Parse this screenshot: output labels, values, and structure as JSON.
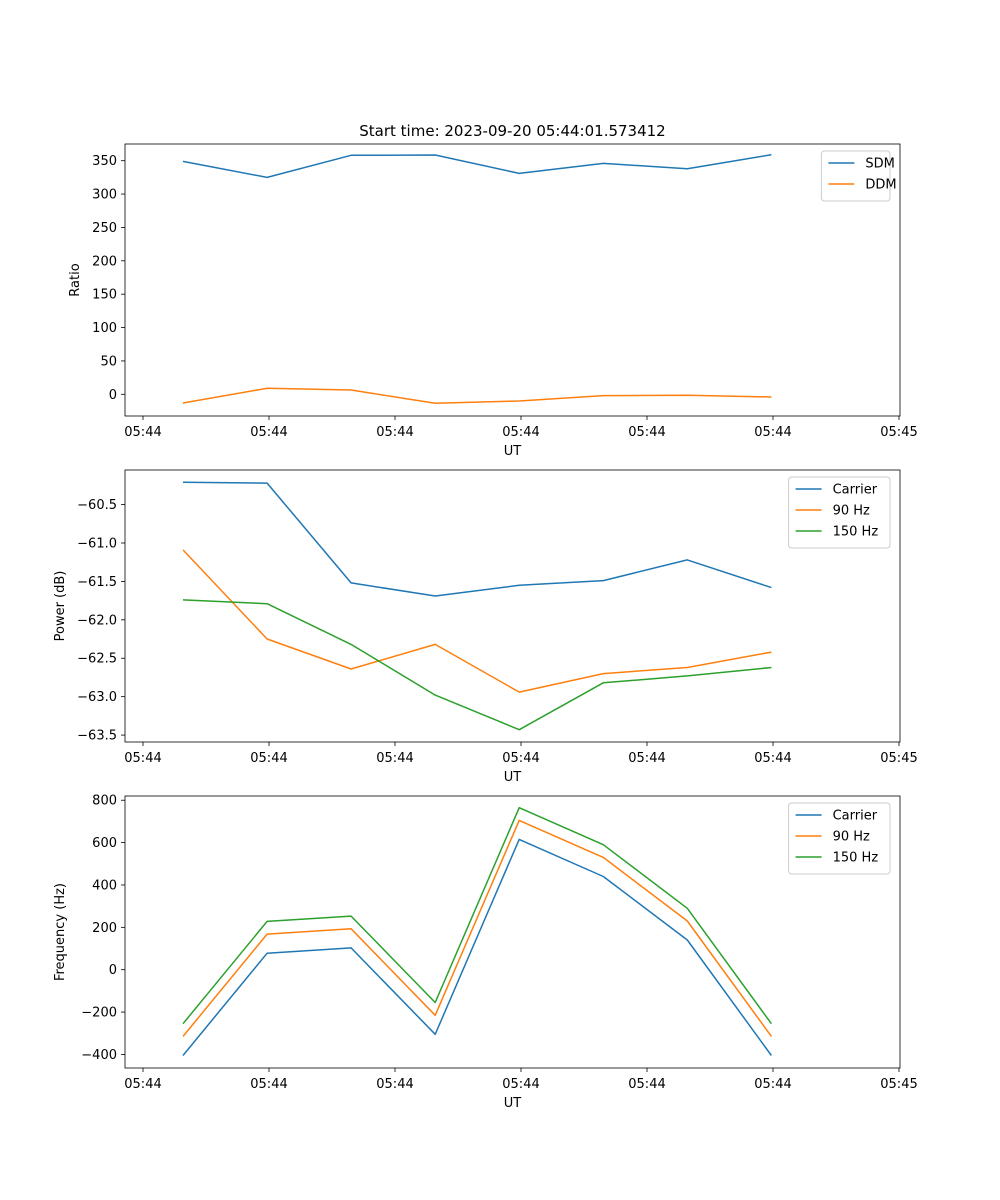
{
  "figure_title": "Start time: 2023-09-20 05:44:01.573412",
  "colors": {
    "blue": "#1f77b4",
    "orange": "#ff7f0e",
    "green": "#2ca02c"
  },
  "chart_data": [
    {
      "type": "line",
      "title": "Start time: 2023-09-20 05:44:01.573412",
      "xlabel": "UT",
      "ylabel": "Ratio",
      "x_ticks": [
        "05:44",
        "05:44",
        "05:44",
        "05:44",
        "05:44",
        "05:44",
        "05:45"
      ],
      "y_ticks": [
        0,
        50,
        100,
        150,
        200,
        250,
        300,
        350
      ],
      "ylim": [
        -32.5,
        375
      ],
      "x": [
        1,
        2,
        3,
        4,
        5,
        6,
        7,
        8
      ],
      "xlim": [
        0.31,
        9.53
      ],
      "legend_position": "upper-right",
      "series": [
        {
          "name": "SDM",
          "color": "#1f77b4",
          "values": [
            349,
            325,
            358,
            358.5,
            331,
            346,
            338,
            359
          ]
        },
        {
          "name": "DDM",
          "color": "#ff7f0e",
          "values": [
            -13,
            9,
            6.5,
            -13.5,
            -10,
            -2,
            -1.5,
            -4
          ]
        }
      ]
    },
    {
      "type": "line",
      "title": "",
      "xlabel": "UT",
      "ylabel": "Power (dB)",
      "x_ticks": [
        "05:44",
        "05:44",
        "05:44",
        "05:44",
        "05:44",
        "05:44",
        "05:45"
      ],
      "y_ticks": [
        -63.5,
        -63.0,
        -62.5,
        -62.0,
        -61.5,
        -61.0,
        -60.5
      ],
      "y_tick_labels": [
        "−63.5",
        "−63.0",
        "−62.5",
        "−62.0",
        "−61.5",
        "−61.0",
        "−60.5"
      ],
      "ylim": [
        -63.59,
        -60.05
      ],
      "x": [
        1,
        2,
        3,
        4,
        5,
        6,
        7,
        8
      ],
      "xlim": [
        0.31,
        9.53
      ],
      "legend_position": "upper-right",
      "series": [
        {
          "name": "Carrier",
          "color": "#1f77b4",
          "values": [
            -60.21,
            -60.22,
            -61.52,
            -61.69,
            -61.55,
            -61.49,
            -61.22,
            -61.58
          ]
        },
        {
          "name": "90 Hz",
          "color": "#ff7f0e",
          "values": [
            -61.09,
            -62.25,
            -62.64,
            -62.32,
            -62.94,
            -62.7,
            -62.62,
            -62.42
          ]
        },
        {
          "name": "150 Hz",
          "color": "#2ca02c",
          "values": [
            -61.74,
            -61.79,
            -62.32,
            -62.98,
            -63.43,
            -62.82,
            -62.73,
            -62.62
          ]
        }
      ]
    },
    {
      "type": "line",
      "title": "",
      "xlabel": "UT",
      "ylabel": "Frequency (Hz)",
      "x_ticks": [
        "05:44",
        "05:44",
        "05:44",
        "05:44",
        "05:44",
        "05:44",
        "05:45"
      ],
      "y_ticks": [
        -400,
        -200,
        0,
        200,
        400,
        600,
        800
      ],
      "y_tick_labels": [
        "−400",
        "−200",
        "0",
        "200",
        "400",
        "600",
        "800"
      ],
      "ylim": [
        -464,
        820
      ],
      "x": [
        1,
        2,
        3,
        4,
        5,
        6,
        7,
        8
      ],
      "xlim": [
        0.31,
        9.53
      ],
      "legend_position": "upper-right",
      "series": [
        {
          "name": "Carrier",
          "color": "#1f77b4",
          "values": [
            -405,
            78,
            103,
            -305,
            615,
            440,
            140,
            -405
          ]
        },
        {
          "name": "90 Hz",
          "color": "#ff7f0e",
          "values": [
            -315,
            168,
            193,
            -215,
            705,
            530,
            230,
            -315
          ]
        },
        {
          "name": "150 Hz",
          "color": "#2ca02c",
          "values": [
            -255,
            228,
            253,
            -155,
            765,
            590,
            290,
            -255
          ]
        }
      ]
    }
  ]
}
